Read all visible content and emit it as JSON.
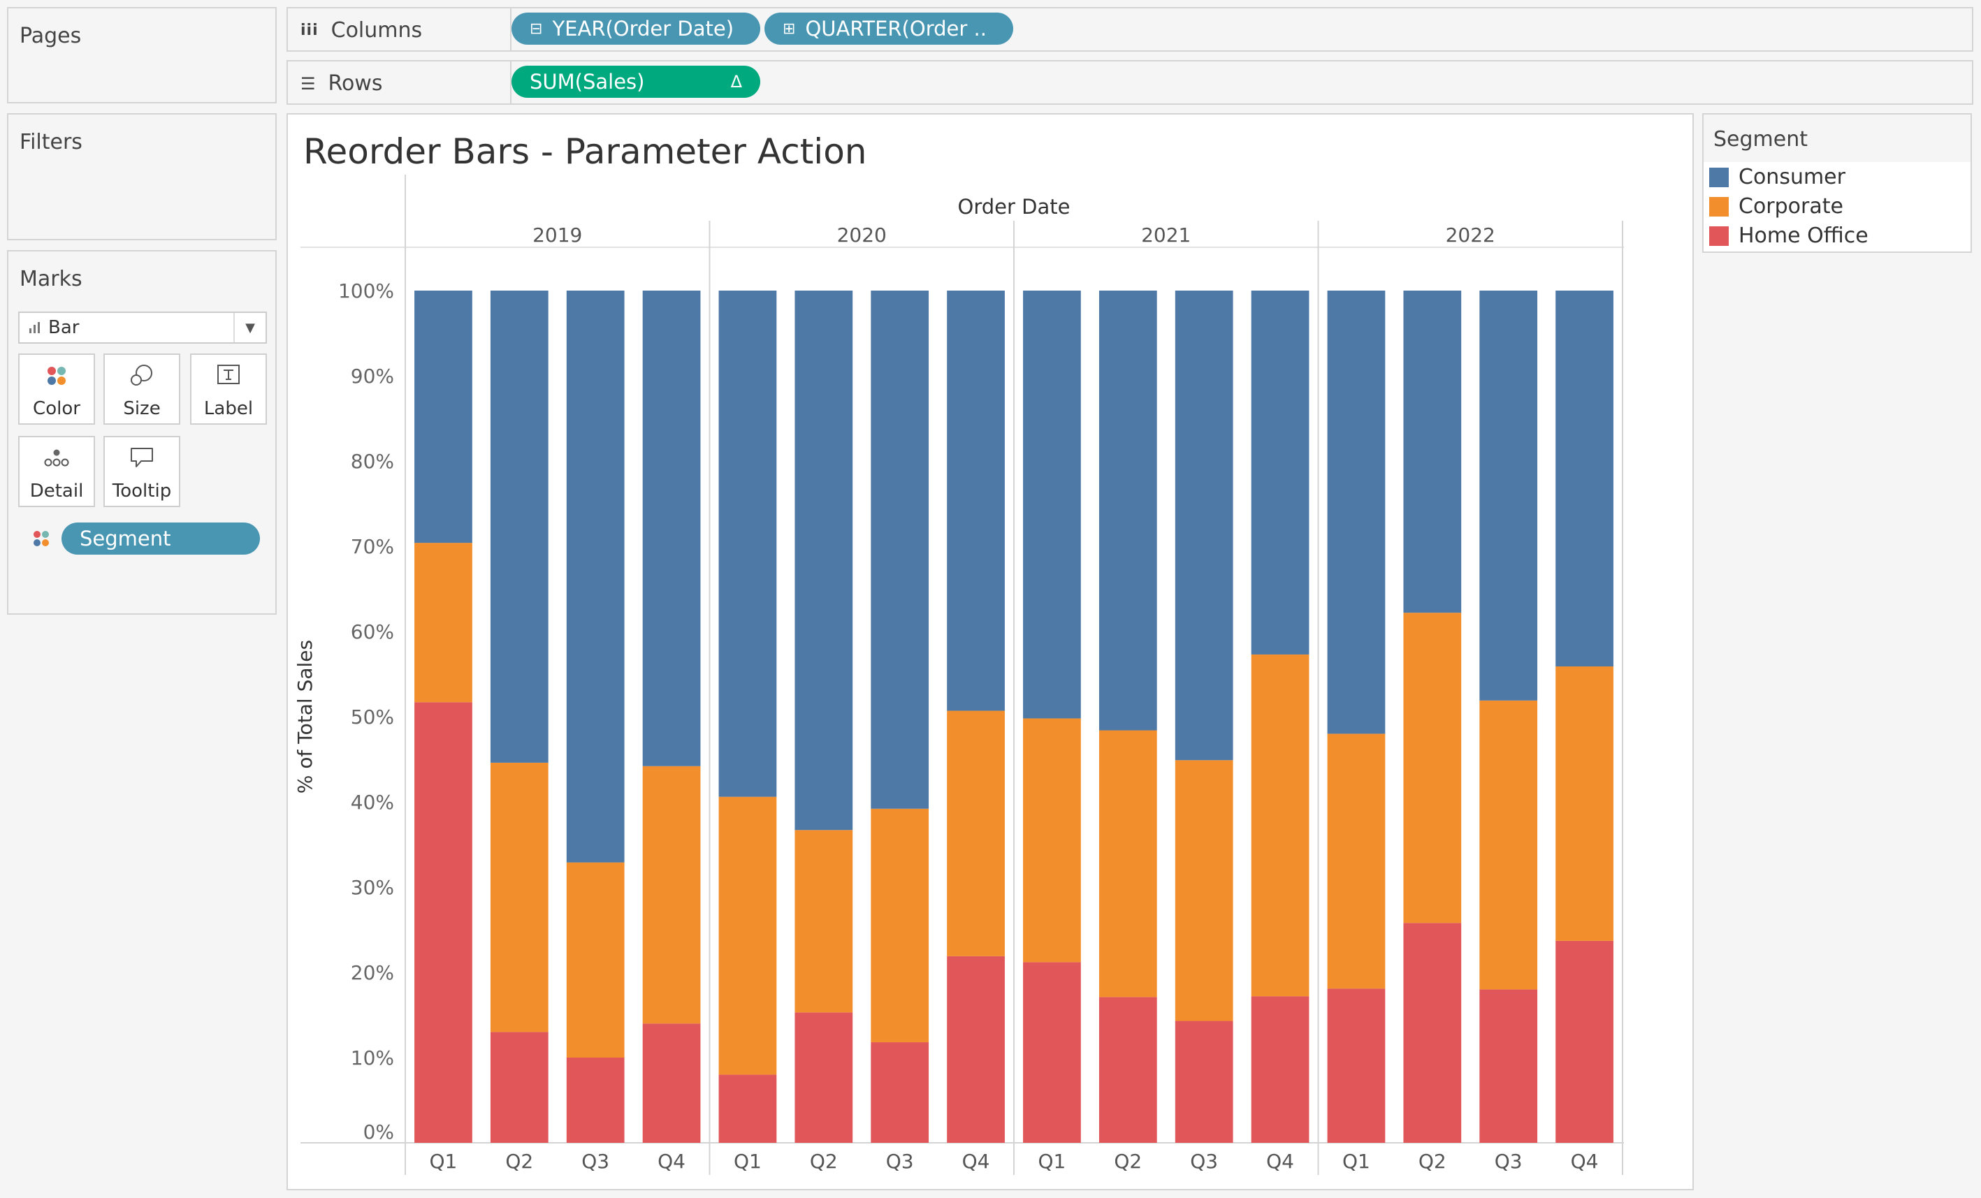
{
  "panels": {
    "pages": "Pages",
    "filters": "Filters",
    "marks": "Marks"
  },
  "shelves": {
    "columns": {
      "label": "Columns",
      "pills": [
        "YEAR(Order Date)",
        "QUARTER(Order .."
      ]
    },
    "rows": {
      "label": "Rows",
      "pills": [
        "SUM(Sales)"
      ],
      "delta_icon": "Δ"
    }
  },
  "marks_card": {
    "mark_type": "Bar",
    "buttons": [
      "Color",
      "Size",
      "Label",
      "Detail",
      "Tooltip"
    ],
    "color_field": "Segment"
  },
  "legend": {
    "title": "Segment",
    "items": [
      {
        "label": "Consumer",
        "color": "#4e79a7"
      },
      {
        "label": "Corporate",
        "color": "#f28e2b"
      },
      {
        "label": "Home Office",
        "color": "#e15759"
      }
    ]
  },
  "chart_data": {
    "type": "bar",
    "stacked": true,
    "title": "Reorder Bars - Parameter Action",
    "header": "Order Date",
    "years": [
      "2019",
      "2020",
      "2021",
      "2022"
    ],
    "quarters": [
      "Q1",
      "Q2",
      "Q3",
      "Q4"
    ],
    "ylabel": "% of Total Sales",
    "ylim": [
      0,
      100
    ],
    "yticks": [
      "0%",
      "10%",
      "20%",
      "30%",
      "40%",
      "50%",
      "60%",
      "70%",
      "80%",
      "90%",
      "100%"
    ],
    "series": [
      {
        "name": "Home Office",
        "color": "#e15759",
        "values": [
          51.7,
          13.0,
          10.0,
          14.0,
          8.0,
          15.3,
          11.8,
          21.9,
          21.2,
          17.1,
          14.3,
          17.2,
          18.1,
          25.8,
          18.0,
          23.7
        ]
      },
      {
        "name": "Corporate",
        "color": "#f28e2b",
        "values": [
          18.7,
          31.6,
          22.9,
          30.2,
          32.6,
          21.4,
          27.4,
          28.8,
          28.6,
          31.3,
          30.6,
          40.1,
          29.9,
          36.4,
          33.9,
          32.2
        ]
      },
      {
        "name": "Consumer",
        "color": "#4e79a7",
        "values": [
          29.6,
          55.4,
          67.1,
          55.8,
          59.4,
          63.3,
          60.8,
          49.3,
          50.2,
          51.6,
          55.1,
          42.7,
          52.0,
          37.8,
          48.1,
          44.1
        ]
      }
    ]
  }
}
